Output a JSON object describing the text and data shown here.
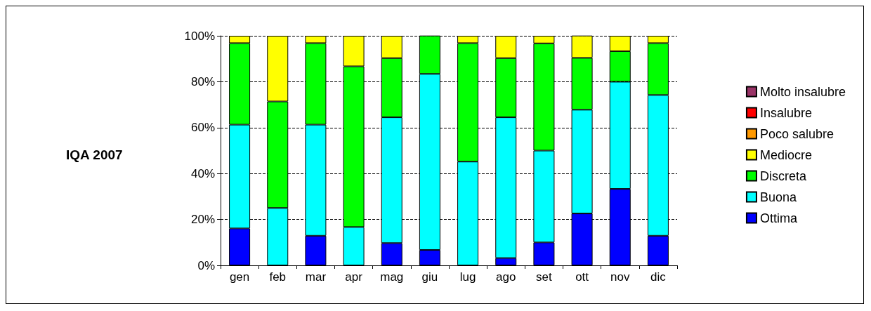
{
  "chart_data": {
    "type": "bar",
    "title": "IQA 2007",
    "stacked": true,
    "categories": [
      "gen",
      "feb",
      "mar",
      "apr",
      "mag",
      "giu",
      "lug",
      "ago",
      "set",
      "ott",
      "nov",
      "dic"
    ],
    "series": [
      {
        "name": "Ottima",
        "color": "#0000ff",
        "values": [
          16.1,
          0,
          12.9,
          0,
          9.7,
          6.7,
          0,
          3.2,
          10.0,
          22.6,
          33.3,
          12.9
        ]
      },
      {
        "name": "Buona",
        "color": "#00ffff",
        "values": [
          45.2,
          25.0,
          48.4,
          16.7,
          54.8,
          76.7,
          45.2,
          61.3,
          40.0,
          45.2,
          46.7,
          61.3
        ]
      },
      {
        "name": "Discreta",
        "color": "#00ff00",
        "values": [
          35.5,
          46.4,
          35.5,
          70.0,
          25.8,
          16.7,
          51.6,
          25.8,
          46.7,
          22.6,
          13.3,
          22.6
        ]
      },
      {
        "name": "Mediocre",
        "color": "#ffff00",
        "values": [
          3.2,
          28.6,
          3.2,
          13.3,
          9.7,
          0,
          3.2,
          9.7,
          3.3,
          9.7,
          6.7,
          3.2
        ]
      },
      {
        "name": "Poco salubre",
        "color": "#ff9900",
        "values": [
          0,
          0,
          0,
          0,
          0,
          0,
          0,
          0,
          0,
          0,
          0,
          0
        ]
      },
      {
        "name": "Insalubre",
        "color": "#ff0000",
        "values": [
          0,
          0,
          0,
          0,
          0,
          0,
          0,
          0,
          0,
          0,
          0,
          0
        ]
      },
      {
        "name": "Molto insalubre",
        "color": "#993366",
        "values": [
          0,
          0,
          0,
          0,
          0,
          0,
          0,
          0,
          0,
          0,
          0,
          0
        ]
      }
    ],
    "ylim": [
      0,
      100
    ],
    "yticks": [
      {
        "value": 0,
        "label": "0%"
      },
      {
        "value": 20,
        "label": "20%"
      },
      {
        "value": 40,
        "label": "40%"
      },
      {
        "value": 60,
        "label": "60%"
      },
      {
        "value": 80,
        "label": "80%"
      },
      {
        "value": 100,
        "label": "100%"
      }
    ],
    "grid": "y",
    "legend": "right"
  }
}
